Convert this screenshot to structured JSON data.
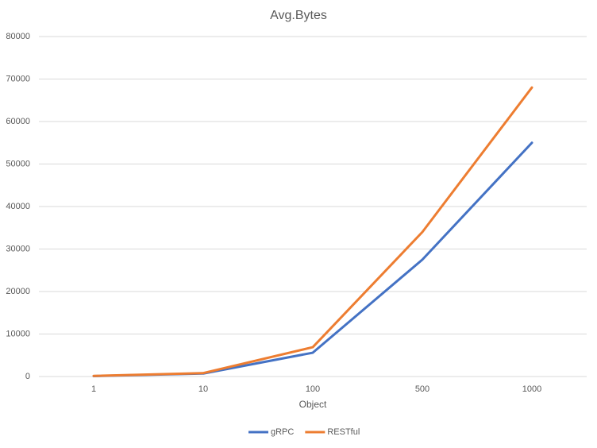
{
  "chart_data": {
    "type": "line",
    "title": "Avg.Bytes",
    "x_label": "Object",
    "categories": [
      "1",
      "10",
      "100",
      "500",
      "1000"
    ],
    "series": [
      {
        "name": "gRPC",
        "color": "#4472c4",
        "values": [
          100,
          700,
          5600,
          27500,
          55000
        ]
      },
      {
        "name": "RESTful",
        "color": "#ed7d31",
        "values": [
          150,
          800,
          6900,
          34000,
          68000
        ]
      }
    ],
    "ylim": [
      0,
      80000
    ],
    "yticks": [
      0,
      10000,
      20000,
      30000,
      40000,
      50000,
      60000,
      70000,
      80000
    ],
    "grid": true,
    "legend": "bottom"
  }
}
